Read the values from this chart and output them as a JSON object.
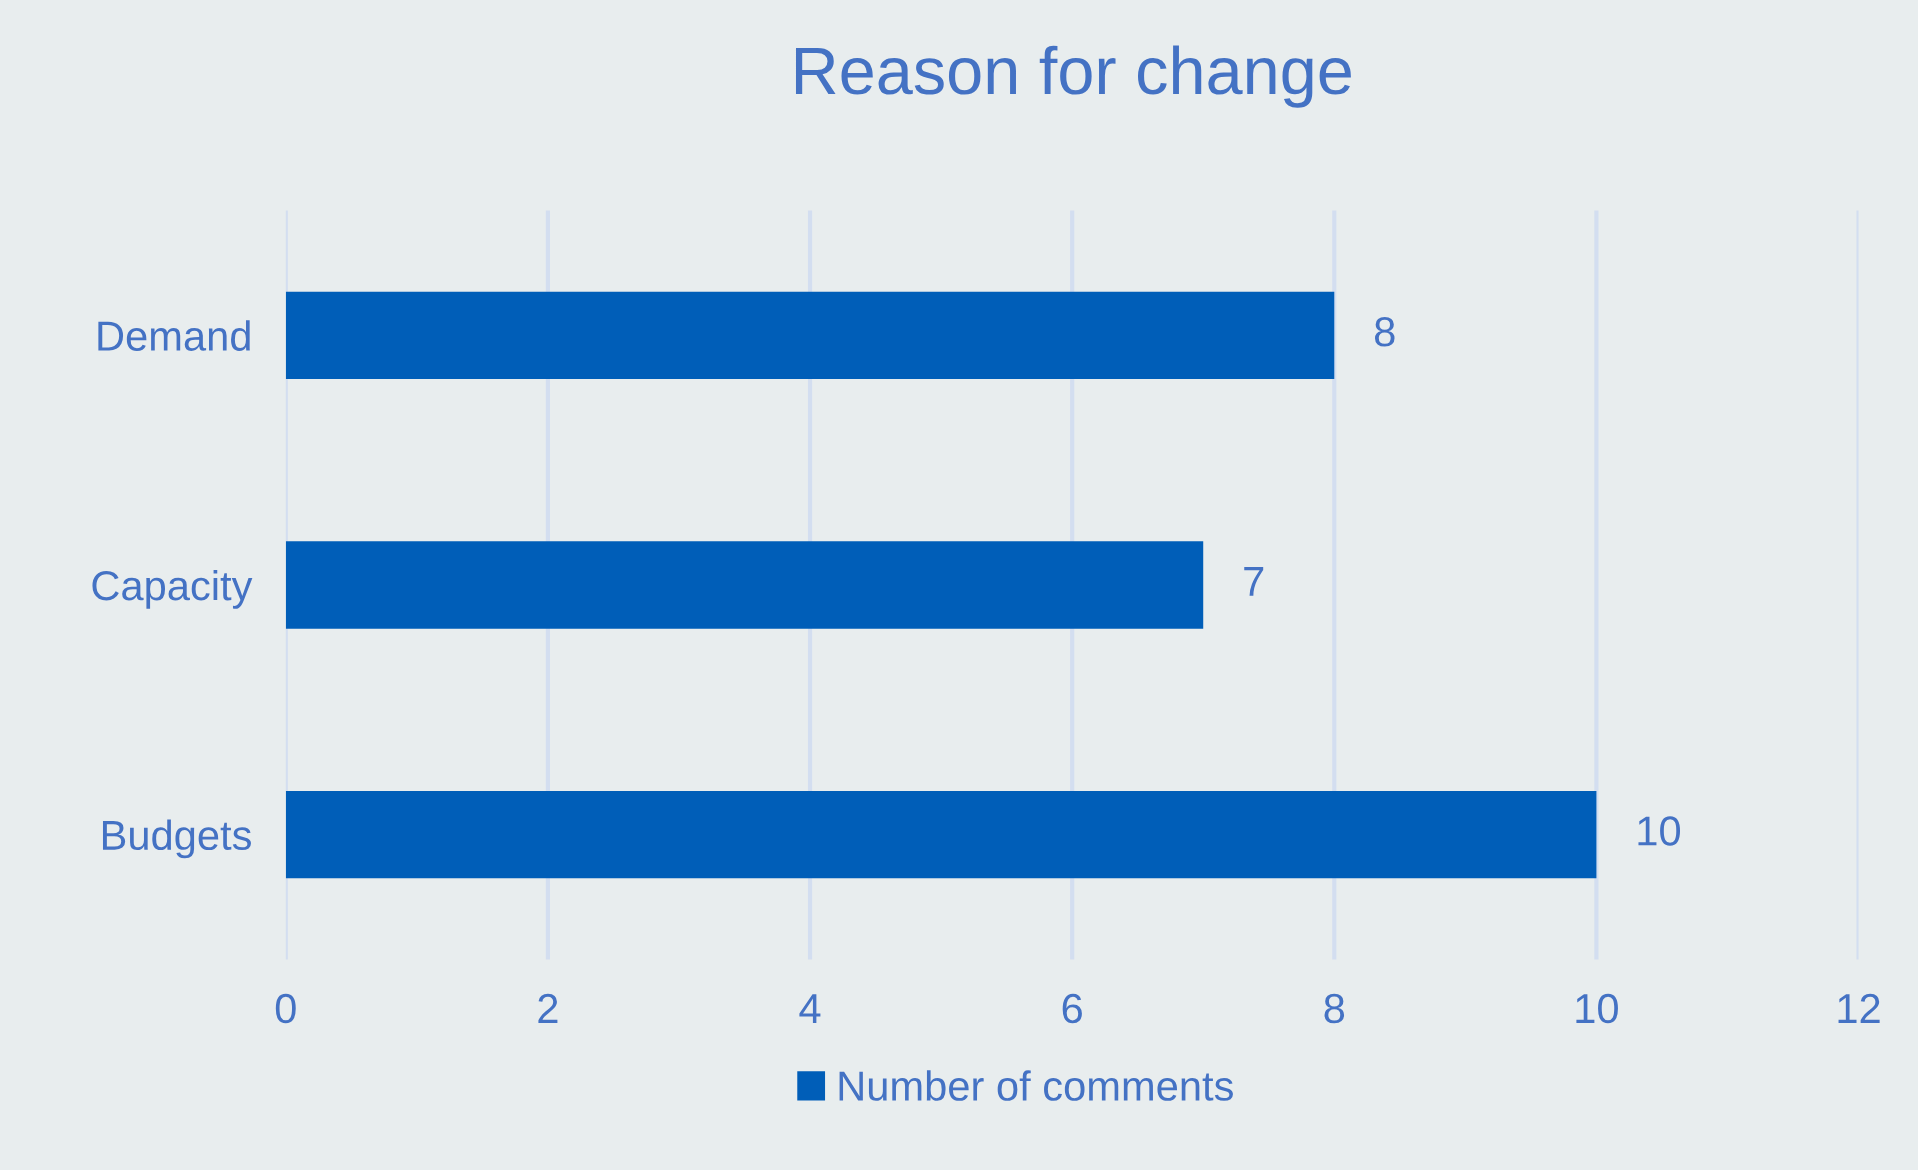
{
  "chart_data": {
    "type": "bar",
    "orientation": "horizontal",
    "title": "Reason for change",
    "categories": [
      "Demand",
      "Capacity",
      "Budgets"
    ],
    "series": [
      {
        "name": "Number of comments",
        "color": "#005eb8",
        "values": [
          8,
          7,
          10
        ]
      }
    ],
    "xlim": [
      0,
      12
    ],
    "xticks": [
      0,
      2,
      4,
      6,
      8,
      10,
      12
    ],
    "grid": "x",
    "legend": "bottom",
    "data_labels": true
  }
}
